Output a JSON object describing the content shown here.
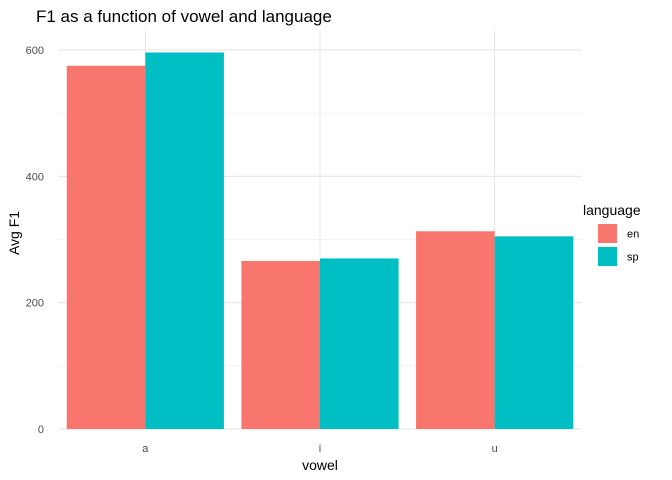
{
  "chart_data": {
    "type": "bar",
    "title": "F1 as a function of vowel and language",
    "xlabel": "vowel",
    "ylabel": "Avg F1",
    "categories": [
      "a",
      "i",
      "u"
    ],
    "series": [
      {
        "name": "en",
        "values": [
          575,
          266,
          313
        ],
        "color": "#F8766D"
      },
      {
        "name": "sp",
        "values": [
          596,
          270,
          305
        ],
        "color": "#00BFC4"
      }
    ],
    "ylim": [
      0,
      630
    ],
    "yticks": [
      0,
      200,
      400,
      600
    ],
    "yminor": [
      100,
      300,
      500
    ],
    "grid": true,
    "legend": {
      "title": "language",
      "placement": "right"
    }
  }
}
